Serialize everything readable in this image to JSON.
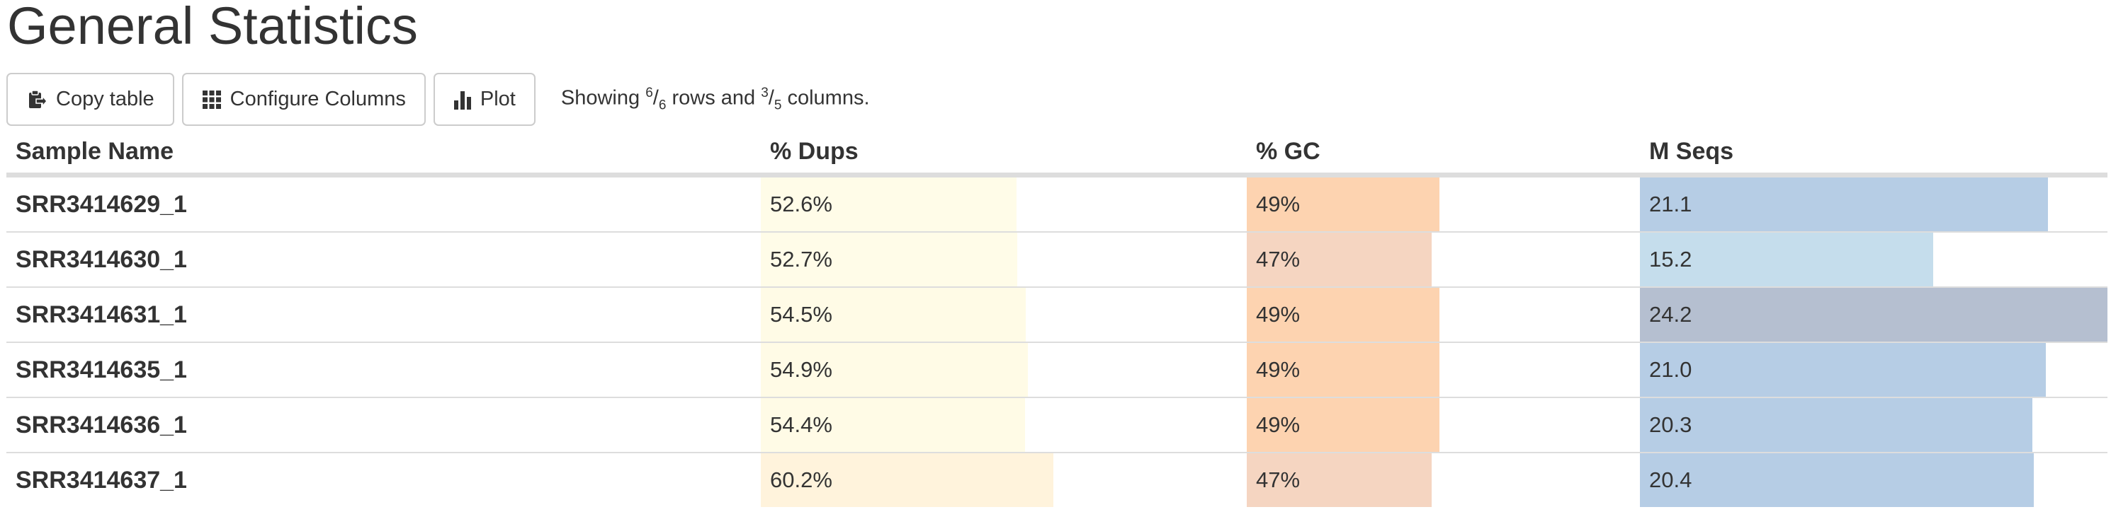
{
  "title": "General Statistics",
  "toolbar": {
    "copy_label": "Copy table",
    "configure_label": "Configure Columns",
    "plot_label": "Plot",
    "info": {
      "prefix": "Showing ",
      "rows_shown": "6",
      "rows_total": "6",
      "mid": " rows and ",
      "cols_shown": "3",
      "cols_total": "5",
      "suffix": " columns."
    }
  },
  "table": {
    "headers": [
      "Sample Name",
      "% Dups",
      "% GC",
      "M Seqs"
    ],
    "rows": [
      {
        "sample": "SRR3414629_1",
        "dups": "52.6%",
        "gc": "49%",
        "mseqs": "21.1"
      },
      {
        "sample": "SRR3414630_1",
        "dups": "52.7%",
        "gc": "47%",
        "mseqs": "15.2"
      },
      {
        "sample": "SRR3414631_1",
        "dups": "54.5%",
        "gc": "49%",
        "mseqs": "24.2"
      },
      {
        "sample": "SRR3414635_1",
        "dups": "54.9%",
        "gc": "49%",
        "mseqs": "21.0"
      },
      {
        "sample": "SRR3414636_1",
        "dups": "54.4%",
        "gc": "49%",
        "mseqs": "20.3"
      },
      {
        "sample": "SRR3414637_1",
        "dups": "60.2%",
        "gc": "47%",
        "mseqs": "20.4"
      }
    ],
    "bar_fraction": {
      "dups": [
        0.526,
        0.527,
        0.545,
        0.549,
        0.544,
        0.602
      ],
      "gc": [
        0.49,
        0.47,
        0.49,
        0.49,
        0.49,
        0.47
      ],
      "mseqs": [
        0.872,
        0.628,
        1.0,
        0.868,
        0.839,
        0.843
      ]
    },
    "bar_colors": {
      "dups": [
        "#fffce8",
        "#fffce8",
        "#fffbe6",
        "#fffbe6",
        "#fffbe6",
        "#fff3dc"
      ],
      "gc": [
        "#fdd3b0",
        "#f5d5c1",
        "#fdd3b0",
        "#fdd3b0",
        "#fdd3b0",
        "#f5d5c1"
      ],
      "mseqs": [
        "#b6cde5",
        "#c5ddec",
        "#b5bfd0",
        "#b6cde5",
        "#b6cde5",
        "#b6cde5"
      ]
    }
  }
}
